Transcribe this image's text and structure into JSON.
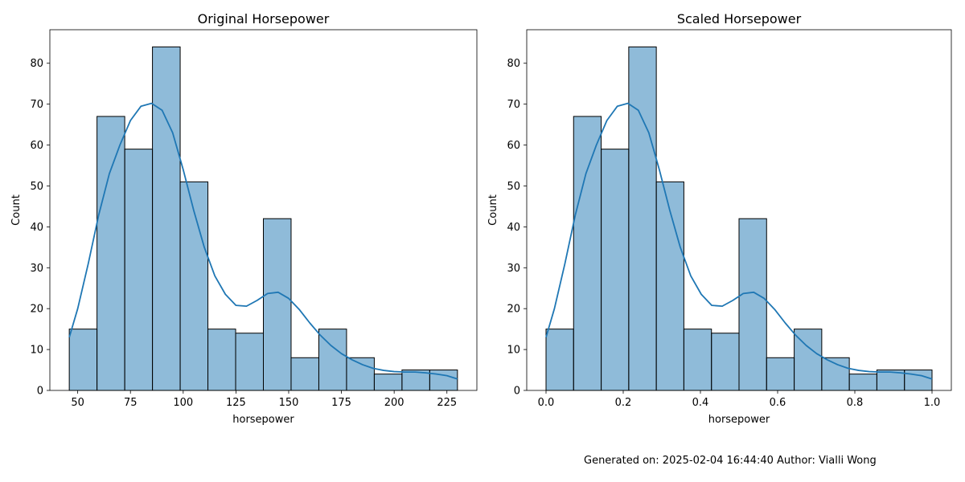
{
  "footer": {
    "text": "Generated on: 2025-02-04 16:44:40 Author: Vialli Wong"
  },
  "colors": {
    "bar_fill": "#1f77b4",
    "bar_edge": "#000000",
    "kde_line": "#1f77b4"
  },
  "chart_data": [
    {
      "type": "bar",
      "title": "Original Horsepower",
      "xlabel": "horsepower",
      "ylabel": "Count",
      "xlim": [
        36.8,
        239.2
      ],
      "ylim": [
        0,
        88.2
      ],
      "xticks": [
        50,
        75,
        100,
        125,
        150,
        175,
        200,
        225
      ],
      "xtick_labels": [
        "50",
        "75",
        "100",
        "125",
        "150",
        "175",
        "200",
        "225"
      ],
      "yticks": [
        0,
        10,
        20,
        30,
        40,
        50,
        60,
        70,
        80
      ],
      "ytick_labels": [
        "0",
        "10",
        "20",
        "30",
        "40",
        "50",
        "60",
        "70",
        "80"
      ],
      "bin_edges": [
        46,
        59.14,
        72.29,
        85.43,
        98.57,
        111.71,
        124.86,
        138,
        151.14,
        164.29,
        177.43,
        190.57,
        203.71,
        216.86,
        230
      ],
      "values": [
        15,
        67,
        59,
        84,
        51,
        15,
        14,
        42,
        8,
        15,
        8,
        4,
        5,
        5
      ],
      "kde": {
        "x": [
          46,
          50,
          55,
          60,
          65,
          70,
          75,
          80,
          85,
          90,
          95,
          100,
          105,
          110,
          115,
          120,
          125,
          130,
          135,
          140,
          145,
          150,
          155,
          160,
          165,
          170,
          175,
          180,
          185,
          190,
          195,
          200,
          205,
          210,
          215,
          220,
          225,
          230
        ],
        "y": [
          13,
          20,
          31,
          43,
          53,
          60,
          66,
          69.5,
          70.2,
          68.5,
          63,
          54,
          44,
          35,
          28,
          23.5,
          20.8,
          20.6,
          22,
          23.7,
          24,
          22.5,
          19.8,
          16.5,
          13.5,
          11,
          9,
          7.5,
          6.3,
          5.4,
          4.9,
          4.6,
          4.5,
          4.5,
          4.3,
          4,
          3.6,
          2.8
        ]
      },
      "grid": false,
      "legend": "none"
    },
    {
      "type": "bar",
      "title": "Scaled Horsepower",
      "xlabel": "horsepower",
      "ylabel": "Count",
      "xlim": [
        -0.05,
        1.05
      ],
      "ylim": [
        0,
        88.2
      ],
      "xticks": [
        0,
        0.2,
        0.4,
        0.6,
        0.8,
        1.0
      ],
      "xtick_labels": [
        "0.0",
        "0.2",
        "0.4",
        "0.6",
        "0.8",
        "1.0"
      ],
      "yticks": [
        0,
        10,
        20,
        30,
        40,
        50,
        60,
        70,
        80
      ],
      "ytick_labels": [
        "0",
        "10",
        "20",
        "30",
        "40",
        "50",
        "60",
        "70",
        "80"
      ],
      "bin_edges": [
        0,
        0.0714,
        0.1429,
        0.2143,
        0.2857,
        0.3571,
        0.4286,
        0.5,
        0.5714,
        0.6429,
        0.7143,
        0.7857,
        0.8571,
        0.9286,
        1.0
      ],
      "values": [
        15,
        67,
        59,
        84,
        51,
        15,
        14,
        42,
        8,
        15,
        8,
        4,
        5,
        5
      ],
      "kde": {
        "x": [
          0,
          0.0217,
          0.0489,
          0.0761,
          0.1033,
          0.1304,
          0.1576,
          0.1848,
          0.212,
          0.2391,
          0.2663,
          0.2935,
          0.3207,
          0.3478,
          0.375,
          0.4022,
          0.4293,
          0.4565,
          0.4837,
          0.5109,
          0.538,
          0.5652,
          0.5924,
          0.6196,
          0.6467,
          0.6739,
          0.7011,
          0.7283,
          0.7554,
          0.7826,
          0.8098,
          0.837,
          0.8641,
          0.8913,
          0.9185,
          0.9457,
          0.9728,
          1.0
        ],
        "y": [
          13,
          20,
          31,
          43,
          53,
          60,
          66,
          69.5,
          70.2,
          68.5,
          63,
          54,
          44,
          35,
          28,
          23.5,
          20.8,
          20.6,
          22,
          23.7,
          24,
          22.5,
          19.8,
          16.5,
          13.5,
          11,
          9,
          7.5,
          6.3,
          5.4,
          4.9,
          4.6,
          4.5,
          4.5,
          4.3,
          4,
          3.6,
          2.8
        ]
      },
      "grid": false,
      "legend": "none"
    }
  ]
}
